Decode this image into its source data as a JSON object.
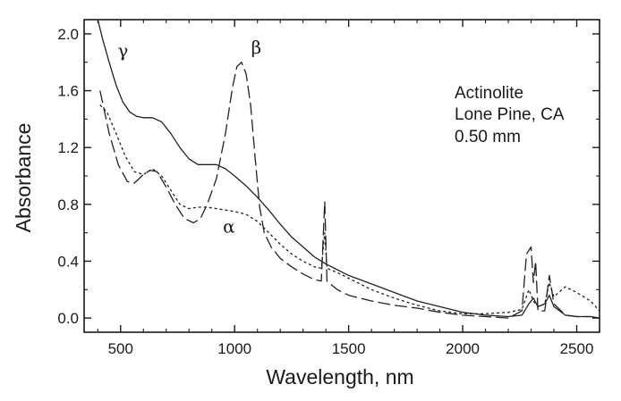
{
  "chart_data": {
    "type": "line",
    "title": "",
    "xlabel": "Wavelength, nm",
    "ylabel": "Absorbance",
    "xlim": [
      340,
      2600
    ],
    "ylim": [
      -0.1,
      2.1
    ],
    "x_ticks": [
      500,
      1000,
      1500,
      2000,
      2500
    ],
    "y_ticks": [
      0.0,
      0.4,
      0.8,
      1.2,
      1.6,
      2.0
    ],
    "x_tick_labels": [
      "500",
      "1000",
      "1500",
      "2000",
      "2500"
    ],
    "y_tick_labels": [
      "0.0",
      "0.4",
      "0.8",
      "1.2",
      "1.6",
      "2.0"
    ],
    "grid": false,
    "legend": "none",
    "annotation_lines": [
      "Actinolite",
      "Lone Pine, CA",
      "0.50 mm"
    ],
    "series": [
      {
        "name": "γ",
        "label_position": [
          510,
          1.84
        ],
        "style": "solid",
        "points": [
          [
            400,
            2.1
          ],
          [
            420,
            1.97
          ],
          [
            450,
            1.8
          ],
          [
            480,
            1.64
          ],
          [
            510,
            1.52
          ],
          [
            540,
            1.45
          ],
          [
            570,
            1.42
          ],
          [
            600,
            1.41
          ],
          [
            640,
            1.41
          ],
          [
            680,
            1.38
          ],
          [
            720,
            1.3
          ],
          [
            760,
            1.2
          ],
          [
            800,
            1.12
          ],
          [
            840,
            1.08
          ],
          [
            880,
            1.08
          ],
          [
            920,
            1.08
          ],
          [
            960,
            1.05
          ],
          [
            1000,
            1.0
          ],
          [
            1050,
            0.93
          ],
          [
            1100,
            0.85
          ],
          [
            1150,
            0.76
          ],
          [
            1200,
            0.66
          ],
          [
            1250,
            0.57
          ],
          [
            1300,
            0.5
          ],
          [
            1350,
            0.43
          ],
          [
            1400,
            0.38
          ],
          [
            1450,
            0.34
          ],
          [
            1500,
            0.3
          ],
          [
            1600,
            0.24
          ],
          [
            1700,
            0.18
          ],
          [
            1800,
            0.12
          ],
          [
            1900,
            0.08
          ],
          [
            2000,
            0.04
          ],
          [
            2100,
            0.02
          ],
          [
            2200,
            0.01
          ],
          [
            2260,
            0.02
          ],
          [
            2290,
            0.1
          ],
          [
            2310,
            0.14
          ],
          [
            2330,
            0.08
          ],
          [
            2360,
            0.1
          ],
          [
            2380,
            0.16
          ],
          [
            2400,
            0.08
          ],
          [
            2450,
            0.02
          ],
          [
            2500,
            0.01
          ],
          [
            2560,
            0.01
          ],
          [
            2600,
            0.0
          ]
        ]
      },
      {
        "name": "β",
        "label_position": [
          1095,
          1.86
        ],
        "style": "long-dash",
        "points": [
          [
            410,
            1.6
          ],
          [
            450,
            1.3
          ],
          [
            490,
            1.08
          ],
          [
            530,
            0.96
          ],
          [
            560,
            0.95
          ],
          [
            600,
            1.01
          ],
          [
            630,
            1.04
          ],
          [
            660,
            1.03
          ],
          [
            700,
            0.92
          ],
          [
            740,
            0.8
          ],
          [
            780,
            0.7
          ],
          [
            820,
            0.67
          ],
          [
            850,
            0.7
          ],
          [
            880,
            0.8
          ],
          [
            920,
            0.98
          ],
          [
            960,
            1.3
          ],
          [
            990,
            1.62
          ],
          [
            1010,
            1.77
          ],
          [
            1030,
            1.8
          ],
          [
            1050,
            1.72
          ],
          [
            1070,
            1.5
          ],
          [
            1090,
            1.12
          ],
          [
            1110,
            0.78
          ],
          [
            1130,
            0.6
          ],
          [
            1160,
            0.5
          ],
          [
            1200,
            0.42
          ],
          [
            1250,
            0.36
          ],
          [
            1300,
            0.31
          ],
          [
            1350,
            0.27
          ],
          [
            1380,
            0.26
          ],
          [
            1395,
            0.82
          ],
          [
            1405,
            0.26
          ],
          [
            1450,
            0.2
          ],
          [
            1500,
            0.16
          ],
          [
            1600,
            0.12
          ],
          [
            1700,
            0.09
          ],
          [
            1800,
            0.07
          ],
          [
            1900,
            0.04
          ],
          [
            2000,
            0.02
          ],
          [
            2100,
            0.01
          ],
          [
            2200,
            0.0
          ],
          [
            2260,
            0.05
          ],
          [
            2280,
            0.45
          ],
          [
            2300,
            0.5
          ],
          [
            2310,
            0.25
          ],
          [
            2320,
            0.4
          ],
          [
            2330,
            0.05
          ],
          [
            2360,
            0.05
          ],
          [
            2380,
            0.3
          ],
          [
            2400,
            0.1
          ],
          [
            2450,
            0.02
          ],
          [
            2500,
            0.01
          ],
          [
            2560,
            0.01
          ],
          [
            2600,
            0.0
          ]
        ]
      },
      {
        "name": "α",
        "label_position": [
          975,
          0.6
        ],
        "style": "short-dash",
        "points": [
          [
            410,
            1.5
          ],
          [
            440,
            1.45
          ],
          [
            480,
            1.3
          ],
          [
            520,
            1.14
          ],
          [
            560,
            1.03
          ],
          [
            600,
            1.01
          ],
          [
            640,
            1.05
          ],
          [
            680,
            1.0
          ],
          [
            720,
            0.9
          ],
          [
            760,
            0.8
          ],
          [
            800,
            0.77
          ],
          [
            840,
            0.78
          ],
          [
            880,
            0.78
          ],
          [
            920,
            0.77
          ],
          [
            960,
            0.76
          ],
          [
            1000,
            0.75
          ],
          [
            1050,
            0.73
          ],
          [
            1100,
            0.68
          ],
          [
            1150,
            0.6
          ],
          [
            1200,
            0.52
          ],
          [
            1250,
            0.45
          ],
          [
            1300,
            0.4
          ],
          [
            1350,
            0.36
          ],
          [
            1380,
            0.35
          ],
          [
            1395,
            0.6
          ],
          [
            1405,
            0.35
          ],
          [
            1450,
            0.32
          ],
          [
            1500,
            0.28
          ],
          [
            1600,
            0.2
          ],
          [
            1700,
            0.14
          ],
          [
            1800,
            0.09
          ],
          [
            1900,
            0.05
          ],
          [
            2000,
            0.03
          ],
          [
            2100,
            0.03
          ],
          [
            2200,
            0.04
          ],
          [
            2260,
            0.06
          ],
          [
            2290,
            0.2
          ],
          [
            2310,
            0.12
          ],
          [
            2330,
            0.08
          ],
          [
            2360,
            0.1
          ],
          [
            2380,
            0.25
          ],
          [
            2400,
            0.15
          ],
          [
            2450,
            0.22
          ],
          [
            2500,
            0.18
          ],
          [
            2560,
            0.12
          ],
          [
            2600,
            0.05
          ]
        ]
      }
    ]
  }
}
